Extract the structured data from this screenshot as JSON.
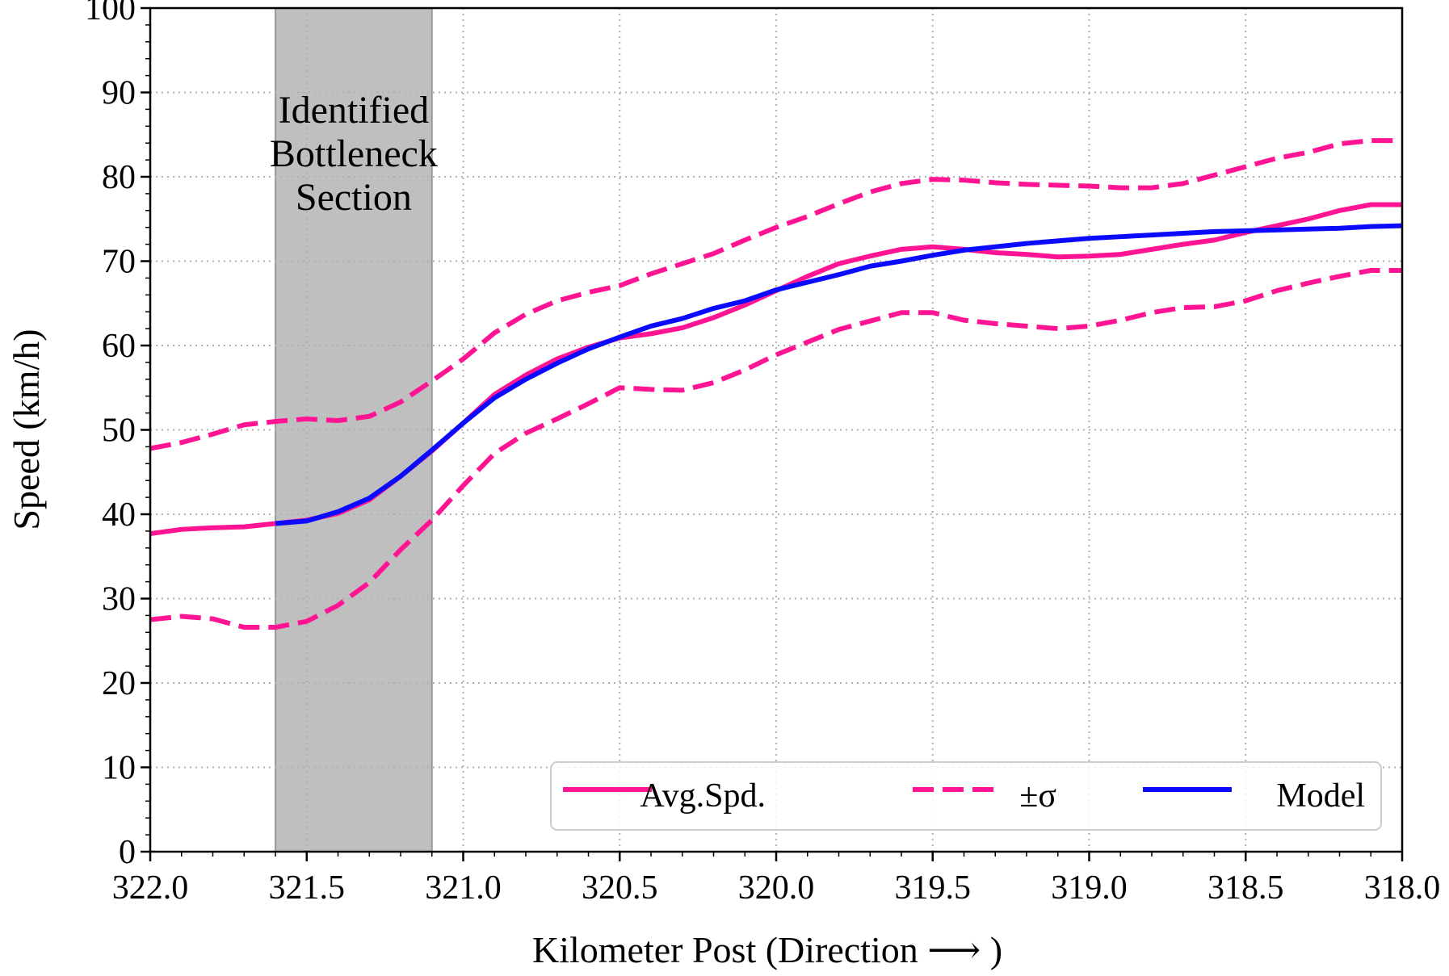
{
  "chart_data": {
    "type": "line",
    "title": "",
    "xlabel": "Kilometer Post (Direction ⟶ )",
    "ylabel": "Speed (km/h)",
    "xlim": [
      322.0,
      318.0
    ],
    "ylim": [
      0,
      100
    ],
    "x_ticks": [
      322.0,
      321.5,
      321.0,
      320.5,
      320.0,
      319.5,
      319.0,
      318.5,
      318.0
    ],
    "x_tick_labels": [
      "322.0",
      "321.5",
      "321.0",
      "320.5",
      "320.0",
      "319.5",
      "319.0",
      "318.5",
      "318.0"
    ],
    "y_ticks": [
      0,
      10,
      20,
      30,
      40,
      50,
      60,
      70,
      80,
      90,
      100
    ],
    "y_tick_labels": [
      "0",
      "10",
      "20",
      "30",
      "40",
      "50",
      "60",
      "70",
      "80",
      "90",
      "100"
    ],
    "grid": true,
    "legend_position": "bottom-right",
    "shaded_region": {
      "x_range": [
        321.6,
        321.1
      ],
      "label_lines": [
        "Identified",
        "Bottleneck",
        "Section"
      ],
      "color": "#bfbfbf"
    },
    "x": [
      322.0,
      321.9,
      321.8,
      321.7,
      321.6,
      321.5,
      321.4,
      321.3,
      321.2,
      321.1,
      321.0,
      320.9,
      320.8,
      320.7,
      320.6,
      320.5,
      320.4,
      320.3,
      320.2,
      320.1,
      320.0,
      319.9,
      319.8,
      319.7,
      319.6,
      319.5,
      319.4,
      319.3,
      319.2,
      319.1,
      319.0,
      318.9,
      318.8,
      318.7,
      318.6,
      318.5,
      318.4,
      318.3,
      318.2,
      318.1,
      318.0
    ],
    "series": [
      {
        "name": "Avg.Spd.",
        "style": "solid",
        "color": "#ff1493",
        "values": [
          37.7,
          38.2,
          38.4,
          38.5,
          38.9,
          39.3,
          40.1,
          41.7,
          44.5,
          47.5,
          50.8,
          54.2,
          56.5,
          58.4,
          59.8,
          60.9,
          61.4,
          62.1,
          63.3,
          64.8,
          66.5,
          68.2,
          69.7,
          70.6,
          71.4,
          71.7,
          71.4,
          71.0,
          70.8,
          70.5,
          70.6,
          70.8,
          71.4,
          72.0,
          72.5,
          73.4,
          74.2,
          75.0,
          76.0,
          76.7,
          76.7
        ]
      },
      {
        "name": "+σ",
        "style": "dashed",
        "color": "#ff1493",
        "values": [
          47.8,
          48.5,
          49.5,
          50.6,
          51.0,
          51.3,
          51.1,
          51.6,
          53.3,
          55.8,
          58.4,
          61.5,
          63.7,
          65.3,
          66.3,
          67.1,
          68.5,
          69.7,
          70.9,
          72.5,
          74.0,
          75.3,
          76.8,
          78.2,
          79.2,
          79.7,
          79.6,
          79.3,
          79.1,
          79.0,
          78.9,
          78.7,
          78.7,
          79.2,
          80.2,
          81.2,
          82.2,
          82.9,
          83.9,
          84.3,
          84.3
        ]
      },
      {
        "name": "−σ",
        "style": "dashed",
        "color": "#ff1493",
        "values": [
          27.5,
          27.9,
          27.6,
          26.6,
          26.6,
          27.3,
          29.2,
          31.9,
          35.8,
          39.3,
          43.4,
          47.2,
          49.6,
          51.3,
          53.1,
          55.0,
          54.8,
          54.7,
          55.6,
          57.1,
          58.9,
          60.4,
          61.9,
          62.9,
          63.9,
          63.9,
          63.0,
          62.6,
          62.3,
          62.0,
          62.3,
          63.0,
          63.9,
          64.5,
          64.6,
          65.3,
          66.5,
          67.4,
          68.2,
          68.9,
          68.9
        ]
      },
      {
        "name": "Model",
        "style": "solid",
        "color": "#0a0aff",
        "values": [
          null,
          null,
          null,
          null,
          38.9,
          39.2,
          40.3,
          41.9,
          44.5,
          47.6,
          50.8,
          53.8,
          56.0,
          57.9,
          59.6,
          61.0,
          62.3,
          63.2,
          64.4,
          65.3,
          66.6,
          67.5,
          68.4,
          69.4,
          70.0,
          70.7,
          71.3,
          71.7,
          72.1,
          72.4,
          72.7,
          72.9,
          73.1,
          73.3,
          73.5,
          73.6,
          73.7,
          73.8,
          73.9,
          74.1,
          74.2
        ]
      }
    ],
    "legend": [
      {
        "label": "Avg.Spd.",
        "style": "solid",
        "color": "#ff1493"
      },
      {
        "label": "±σ",
        "style": "dashed",
        "color": "#ff1493"
      },
      {
        "label": "Model",
        "style": "solid",
        "color": "#0a0aff"
      }
    ]
  }
}
